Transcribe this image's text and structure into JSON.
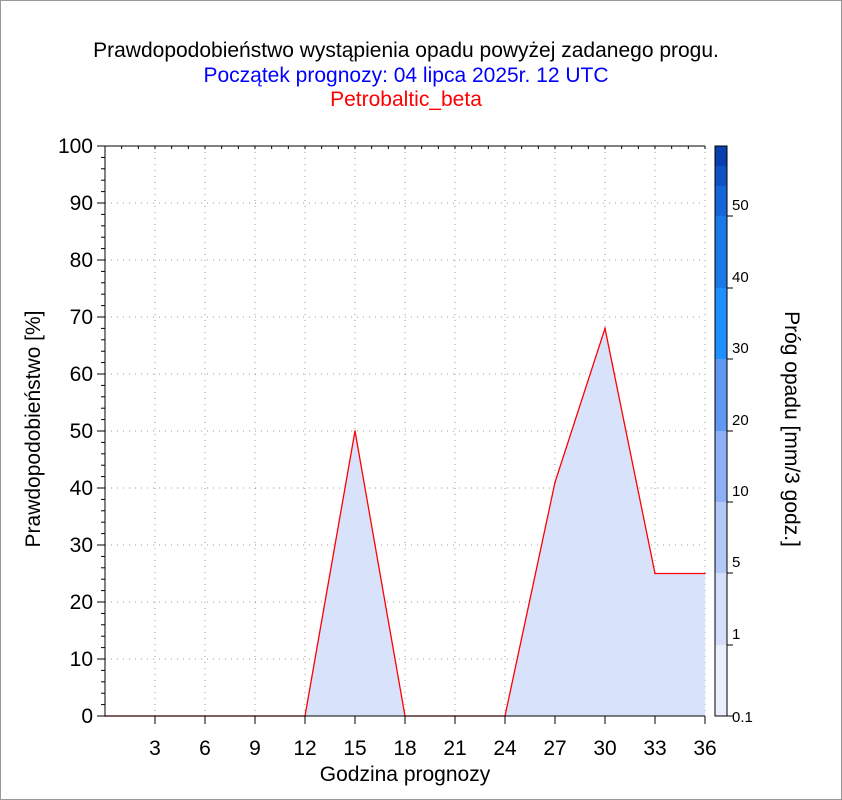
{
  "header": {
    "title": "Prawdopodobieństwo wystąpienia opadu powyżej zadanego progu.",
    "subtitle": "Początek prognozy: 04 lipca 2025r. 12 UTC",
    "model": "Petrobaltic_beta"
  },
  "colors": {
    "line": "#ff0000",
    "fill": "#d9e2fb",
    "title": "#000000",
    "subtitle": "#0000ff",
    "model": "#ff0000"
  },
  "chart_data": {
    "type": "area",
    "xlabel": "Godzina prognozy",
    "ylabel": "Prawdopodobieństwo [%]",
    "xlim": [
      0,
      36
    ],
    "ylim": [
      0,
      100
    ],
    "x_ticks": [
      3,
      6,
      9,
      12,
      15,
      18,
      21,
      24,
      27,
      30,
      33,
      36
    ],
    "y_ticks": [
      0,
      10,
      20,
      30,
      40,
      50,
      60,
      70,
      80,
      90,
      100
    ],
    "grid": true,
    "series": [
      {
        "x": [
          0,
          3,
          6,
          9,
          12,
          15,
          18,
          21,
          24,
          27,
          30,
          33,
          36
        ],
        "values": [
          0,
          0,
          0,
          0,
          0,
          50,
          0,
          0,
          0,
          41,
          68,
          25,
          25
        ]
      }
    ],
    "colorbar": {
      "label": "Próg opadu [mm/3 godz.]",
      "tick_labels": [
        "0.1",
        "1",
        "5",
        "10",
        "20",
        "30",
        "40",
        "50"
      ],
      "colors": [
        "#ebeffc",
        "#d4defa",
        "#b3c8f6",
        "#8daff3",
        "#5f97f1",
        "#1e90ff",
        "#1a7ae8",
        "#1566d8",
        "#0f52c4",
        "#0a40ad"
      ]
    }
  }
}
